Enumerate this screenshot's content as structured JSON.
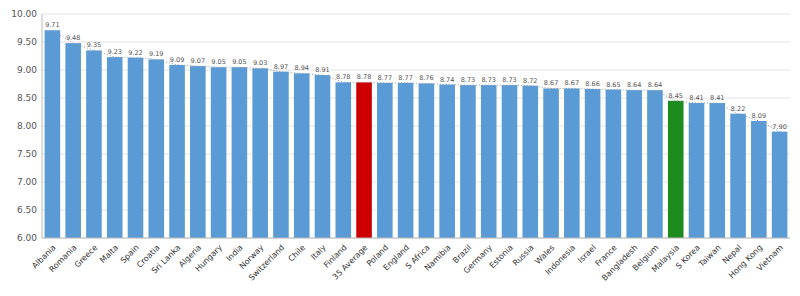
{
  "chart_data": {
    "type": "bar",
    "categories": [
      "Albania",
      "Romania",
      "Greece",
      "Malta",
      "Spain",
      "Croatia",
      "Sri Lanka",
      "Algeria",
      "Hungary",
      "India",
      "Norway",
      "Switzerland",
      "Chile",
      "Italy",
      "Finland",
      "35 Average",
      "Poland",
      "England",
      "S Africa",
      "Namibia",
      "Brazil",
      "Germany",
      "Estonia",
      "Russia",
      "Wales",
      "Indonesia",
      "Israel",
      "France",
      "Bangladesh",
      "Belgium",
      "Malaysia",
      "S Korea",
      "Taiwan",
      "Nepal",
      "Hong Kong",
      "Vietnam"
    ],
    "values": [
      9.71,
      9.48,
      9.35,
      9.23,
      9.22,
      9.19,
      9.09,
      9.07,
      9.05,
      9.05,
      9.03,
      8.97,
      8.94,
      8.91,
      8.78,
      8.78,
      8.77,
      8.77,
      8.76,
      8.74,
      8.73,
      8.73,
      8.73,
      8.72,
      8.67,
      8.67,
      8.66,
      8.65,
      8.64,
      8.64,
      8.45,
      8.41,
      8.41,
      8.22,
      8.09,
      7.9
    ],
    "value_labels": [
      "9.71",
      "9.48",
      "9.35",
      "9.23",
      "9.22",
      "9.19",
      "9.09",
      "9.07",
      "9.05",
      "9.05",
      "9.03",
      "8.97",
      "8.94",
      "8.91",
      "8.78",
      "8.78",
      "8.77",
      "8.77",
      "8.76",
      "8.74",
      "8.73",
      "8.73",
      "8.73",
      "8.72",
      "8.67",
      "8.67",
      "8.66",
      "8.65",
      "8.64",
      "8.64",
      "8.45",
      "8.41",
      "8.41",
      "8.22",
      "8.09",
      "7.90"
    ],
    "colors": [
      "#5b9bd5",
      "#5b9bd5",
      "#5b9bd5",
      "#5b9bd5",
      "#5b9bd5",
      "#5b9bd5",
      "#5b9bd5",
      "#5b9bd5",
      "#5b9bd5",
      "#5b9bd5",
      "#5b9bd5",
      "#5b9bd5",
      "#5b9bd5",
      "#5b9bd5",
      "#5b9bd5",
      "#cc0000",
      "#5b9bd5",
      "#5b9bd5",
      "#5b9bd5",
      "#5b9bd5",
      "#5b9bd5",
      "#5b9bd5",
      "#5b9bd5",
      "#5b9bd5",
      "#5b9bd5",
      "#5b9bd5",
      "#5b9bd5",
      "#5b9bd5",
      "#5b9bd5",
      "#5b9bd5",
      "#1e8b1e",
      "#5b9bd5",
      "#5b9bd5",
      "#5b9bd5",
      "#5b9bd5",
      "#5b9bd5"
    ],
    "ylim": [
      6.0,
      10.0
    ],
    "yticks": [
      {
        "value": 6.0,
        "label": "6.00"
      },
      {
        "value": 6.5,
        "label": "6.50"
      },
      {
        "value": 7.0,
        "label": "7.00"
      },
      {
        "value": 7.5,
        "label": "7.50"
      },
      {
        "value": 8.0,
        "label": "8.00"
      },
      {
        "value": 8.5,
        "label": "8.50"
      },
      {
        "value": 9.0,
        "label": "9.00"
      },
      {
        "value": 9.5,
        "label": "9.50"
      },
      {
        "value": 10.0,
        "label": "10.00"
      }
    ],
    "grid": true,
    "data_labels": true
  }
}
